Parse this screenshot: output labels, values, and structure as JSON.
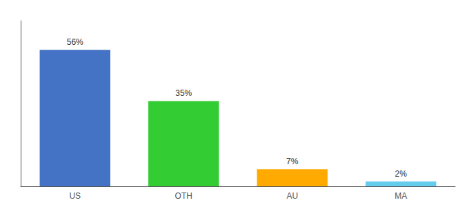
{
  "chart_data": {
    "type": "bar",
    "categories": [
      "US",
      "OTH",
      "AU",
      "MA"
    ],
    "values": [
      56,
      35,
      7,
      2
    ],
    "value_labels": [
      "56%",
      "35%",
      "7%",
      "2%"
    ],
    "colors": [
      "#4472c4",
      "#33cc33",
      "#ffaa00",
      "#66ccee"
    ],
    "data_labels": true,
    "ylim": [
      0,
      68
    ],
    "grid": false,
    "tick_labels": "x"
  }
}
